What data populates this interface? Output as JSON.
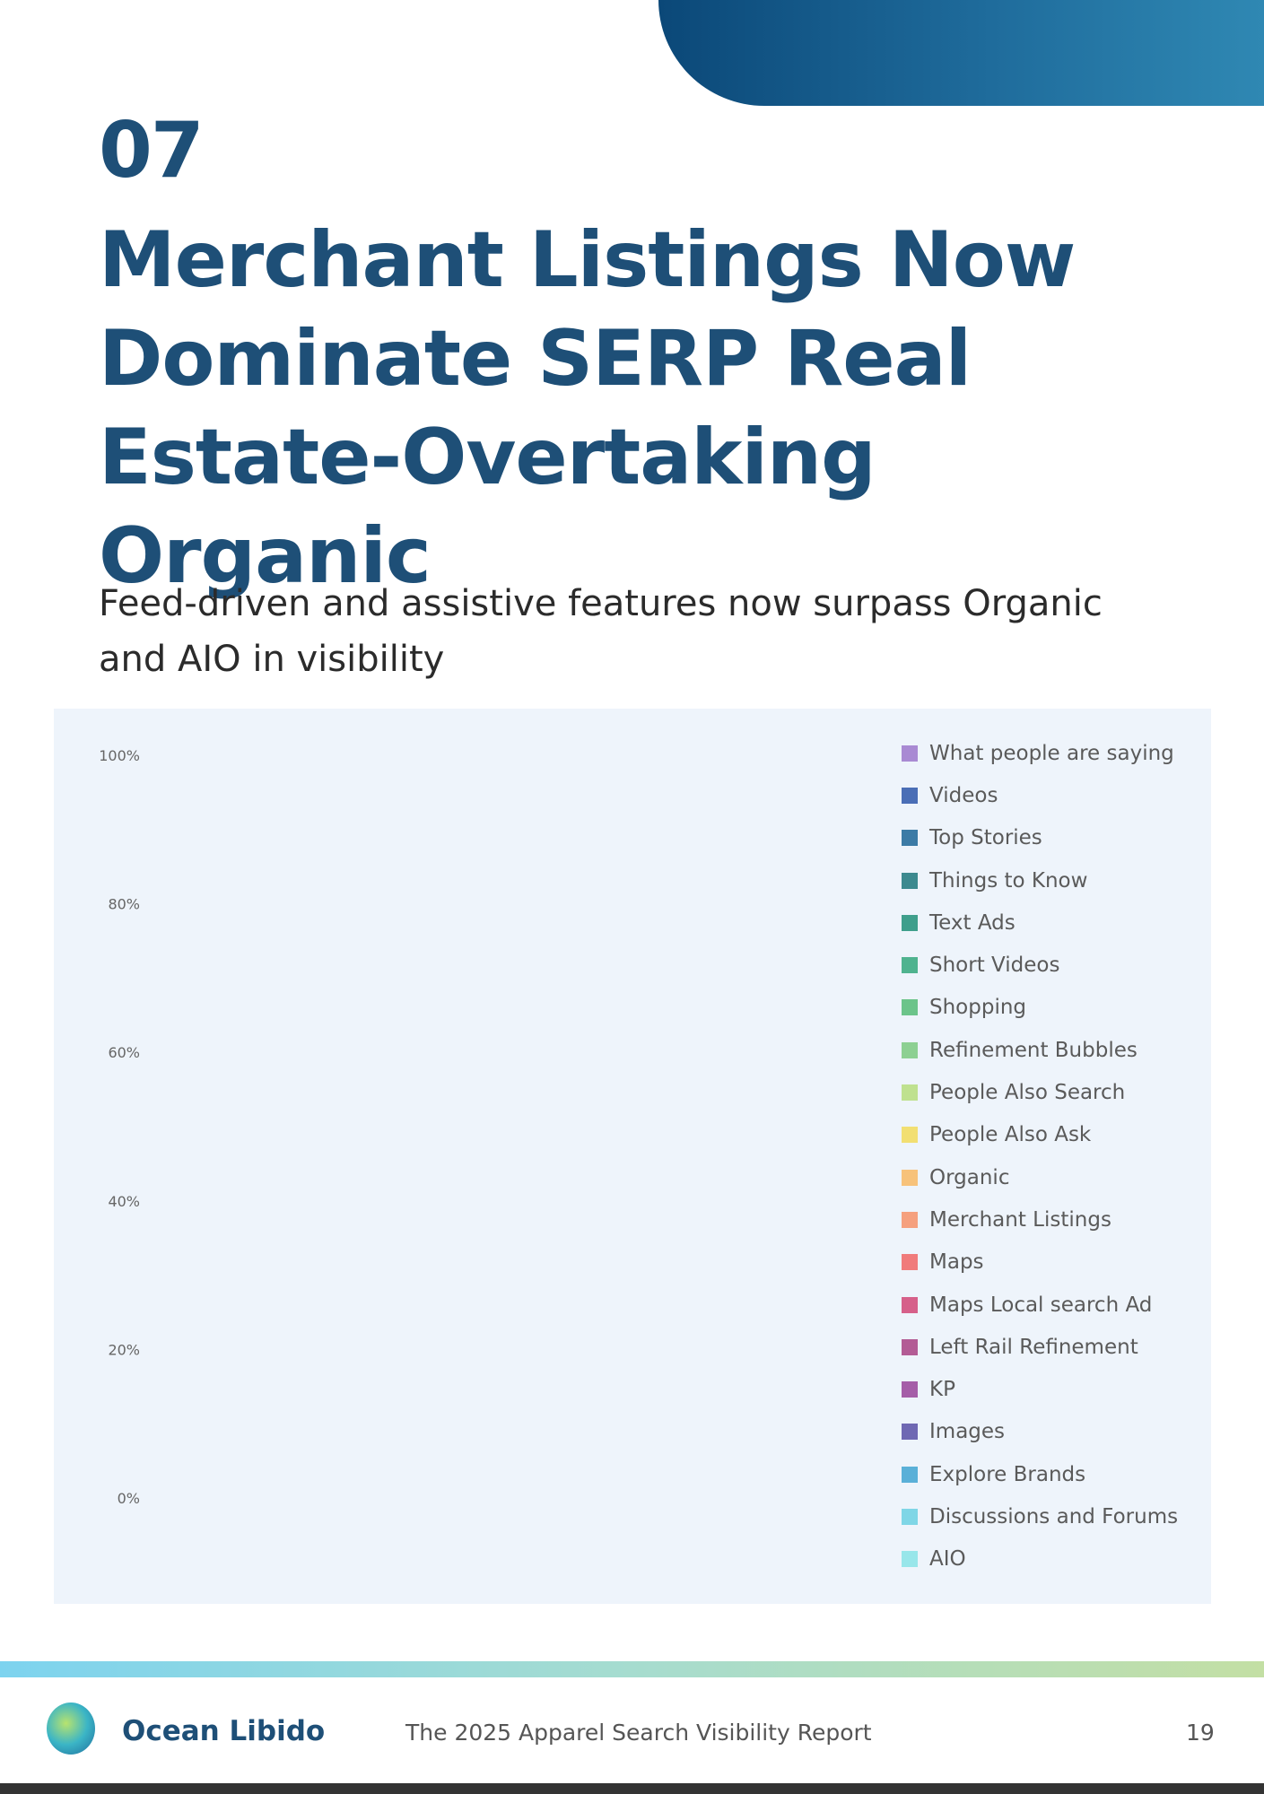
{
  "page": {
    "section_number": "07",
    "title": "Merchant Listings Now Dominate SERP Real Estate-Overtaking Organic",
    "subtitle": "Feed-driven and assistive features now surpass Organic and AIO in visibility"
  },
  "footer": {
    "brand": "Ocean Libido",
    "report_title": "The 2025 Apparel Search Visibility Report",
    "page_number": "19"
  },
  "colors": {
    "title": "#1e4f77",
    "banner": "#0b4878",
    "panel_bg": "#eef4fb"
  },
  "chart_data": {
    "type": "area",
    "stacked": true,
    "normalized": true,
    "y_tick_labels": [
      "0%",
      "20%",
      "40%",
      "60%",
      "80%",
      "100%"
    ],
    "x_tick_labels": [],
    "ylim": [
      0,
      100
    ],
    "legend_position": "right",
    "grid": false,
    "series": [
      {
        "name": "AIO",
        "color": "#98e6ea",
        "values": [
          0,
          0,
          0,
          0,
          0,
          0,
          0,
          0,
          0,
          0,
          0,
          0,
          0,
          0,
          0,
          0,
          0,
          0,
          0,
          0,
          0,
          0,
          0,
          0,
          0,
          0,
          0,
          0,
          0,
          0,
          0,
          0,
          0,
          0,
          0,
          0,
          0,
          0,
          0,
          0,
          0,
          0,
          0,
          0,
          0,
          0
        ]
      },
      {
        "name": "Discussions and Forums",
        "color": "#7fd6e6",
        "values": [
          0,
          0,
          0,
          0,
          0,
          0,
          0,
          0,
          0,
          0,
          0,
          0,
          0,
          0,
          0,
          0,
          0,
          0,
          0,
          0,
          0,
          0,
          0,
          0,
          0,
          0,
          0,
          0,
          0,
          0,
          0,
          0,
          0,
          0,
          0,
          0,
          0,
          0,
          0,
          0,
          0,
          0,
          0,
          0,
          0,
          0
        ]
      },
      {
        "name": "Explore Brands",
        "color": "#5ab0d8",
        "values": [
          0,
          0,
          0,
          0,
          0,
          0,
          0,
          0,
          0,
          0,
          0,
          0,
          0,
          0,
          0,
          0,
          0,
          0,
          0,
          0,
          0,
          0,
          0,
          0,
          0,
          0,
          0,
          0,
          0,
          0,
          0,
          0,
          0,
          0,
          0,
          0,
          0,
          0,
          0,
          0,
          0,
          0,
          0,
          0,
          0,
          0
        ]
      },
      {
        "name": "Images",
        "color": "#6f68b3",
        "values": [
          0,
          0,
          0,
          0,
          0,
          0,
          0,
          0,
          0,
          0,
          0,
          0,
          0,
          0,
          0,
          0,
          0,
          0,
          0,
          0,
          0,
          0,
          0,
          0,
          0,
          0,
          0,
          0,
          0,
          0,
          0,
          0,
          0,
          0,
          0,
          0,
          0,
          0,
          0,
          0,
          0,
          0,
          0,
          0,
          0,
          0
        ]
      },
      {
        "name": "KP",
        "color": "#a55ea8",
        "values": [
          0,
          0,
          0,
          0,
          0,
          0,
          0,
          0,
          0,
          0,
          0,
          0,
          0,
          0,
          0,
          0,
          0,
          0,
          0,
          0,
          0,
          0,
          0,
          0,
          0,
          0,
          0,
          0,
          0,
          0,
          0,
          0,
          0,
          0,
          0,
          0,
          0,
          0,
          0,
          0,
          0,
          0,
          0,
          0,
          0,
          0
        ]
      },
      {
        "name": "Left Rail Refinement",
        "color": "#b35c95",
        "values": [
          0,
          0,
          0,
          0,
          0,
          0,
          0,
          0,
          0,
          0,
          0,
          0,
          0,
          0,
          0,
          0,
          0,
          0,
          0,
          0,
          0,
          0,
          0,
          0,
          0,
          0,
          0,
          0,
          0,
          0,
          0,
          0,
          0,
          0,
          0,
          0,
          0,
          0,
          0,
          0,
          0,
          0,
          0,
          0,
          0,
          0
        ]
      },
      {
        "name": "Maps Local search Ad",
        "color": "#d6608a",
        "values": [
          0,
          0,
          0,
          0,
          0,
          0,
          0,
          0,
          0,
          0,
          0,
          0,
          0,
          0,
          0,
          0,
          0,
          0,
          0,
          0,
          0,
          0,
          0,
          0,
          0,
          0,
          0,
          0,
          0,
          0,
          0,
          0,
          0,
          0,
          0,
          0,
          0,
          0,
          0,
          0,
          0,
          0,
          0,
          0,
          0,
          0
        ]
      },
      {
        "name": "Maps",
        "color": "#f07b7b",
        "values": [
          0,
          0,
          0,
          0,
          0,
          0,
          0,
          0,
          0,
          0,
          0,
          0,
          0,
          0,
          0,
          0,
          0,
          0,
          0,
          0,
          0,
          0,
          0,
          0,
          0,
          0,
          0,
          0,
          0,
          0,
          0,
          0,
          0,
          0,
          0,
          0,
          0,
          0,
          0,
          0,
          0,
          0,
          0,
          0,
          0,
          0
        ]
      },
      {
        "name": "Merchant Listings",
        "color": "#f5a07e",
        "values": [
          0,
          0,
          0,
          0,
          0,
          0,
          0,
          0,
          0,
          0,
          0,
          0,
          0,
          0,
          0,
          0,
          0,
          0,
          0,
          0,
          0,
          0,
          0,
          0,
          0,
          0,
          0,
          0,
          0,
          0,
          0,
          0,
          0,
          0,
          0,
          0,
          0,
          0,
          0,
          0,
          0,
          0,
          0,
          0,
          0,
          0
        ]
      },
      {
        "name": "Organic",
        "color": "#f7c27a",
        "values": [
          0,
          0,
          0,
          0,
          0,
          0,
          0,
          0,
          0,
          0,
          0,
          0,
          0,
          0,
          0,
          0,
          0,
          0,
          0,
          0,
          0,
          0,
          0,
          0,
          0,
          0,
          0,
          0,
          0,
          0,
          0,
          0,
          0,
          0,
          0,
          0,
          0,
          0,
          0,
          0,
          0,
          0,
          0,
          0,
          0,
          0
        ]
      },
      {
        "name": "People Also Ask",
        "color": "#f2df72",
        "values": [
          0,
          0,
          0,
          0,
          0,
          0,
          0,
          0,
          0,
          0,
          0,
          0,
          0,
          0,
          0,
          0,
          0,
          0,
          0,
          0,
          0,
          0,
          0,
          0,
          0,
          0,
          0,
          0,
          0,
          0,
          0,
          0,
          0,
          0,
          0,
          0,
          0,
          0,
          0,
          0,
          0,
          0,
          0,
          0,
          0,
          0
        ]
      },
      {
        "name": "People Also Search",
        "color": "#bfe18f",
        "values": [
          0,
          0,
          0,
          0,
          0,
          0,
          0,
          0,
          0,
          0,
          0,
          0,
          0,
          0,
          0,
          0,
          0,
          0,
          0,
          0,
          0,
          0,
          0,
          0,
          0,
          0,
          0,
          0,
          0,
          0,
          0,
          0,
          0,
          0,
          0,
          0,
          0,
          0,
          0,
          0,
          0,
          0,
          0,
          0,
          0,
          0
        ]
      },
      {
        "name": "Refinement Bubbles",
        "color": "#8dd092",
        "values": [
          0,
          0,
          0,
          0,
          0,
          0,
          0,
          0,
          0,
          0,
          0,
          0,
          0,
          0,
          0,
          0,
          0,
          0,
          0,
          0,
          0,
          0,
          0,
          0,
          0,
          0,
          0,
          0,
          0,
          0,
          0,
          0,
          0,
          0,
          0,
          0,
          0,
          0,
          0,
          0,
          0,
          0,
          0,
          0,
          0,
          0
        ]
      },
      {
        "name": "Shopping",
        "color": "#6cc48a",
        "values": [
          0,
          0,
          0,
          0,
          0,
          0,
          0,
          0,
          0,
          0,
          0,
          0,
          0,
          0,
          0,
          0,
          0,
          0,
          0,
          0,
          0,
          0,
          0,
          0,
          0,
          0,
          0,
          0,
          0,
          0,
          0,
          0,
          0,
          0,
          0,
          0,
          0,
          0,
          0,
          0,
          0,
          0,
          0,
          0,
          0,
          0
        ]
      },
      {
        "name": "Short Videos",
        "color": "#4fb38f",
        "values": [
          0,
          0,
          0,
          0,
          0,
          0,
          0,
          0,
          0,
          0,
          0,
          0,
          0,
          0,
          0,
          0,
          0,
          0,
          0,
          0,
          0,
          0,
          0,
          0,
          0,
          0,
          0,
          0,
          0,
          0,
          0,
          0,
          0,
          0,
          0,
          0,
          0,
          0,
          0,
          0,
          0,
          0,
          0,
          0,
          0,
          0
        ]
      },
      {
        "name": "Text Ads",
        "color": "#3f9f8c",
        "values": [
          0,
          0,
          0,
          0,
          0,
          0,
          0,
          0,
          0,
          0,
          0,
          0,
          0,
          0,
          0,
          0,
          0,
          0,
          0,
          0,
          0,
          0,
          0,
          0,
          0,
          0,
          0,
          0,
          0,
          0,
          0,
          0,
          0,
          0,
          0,
          0,
          0,
          0,
          0,
          0,
          0,
          0,
          0,
          0,
          0,
          0
        ]
      },
      {
        "name": "Things to Know",
        "color": "#3d8a8f",
        "values": [
          0,
          0,
          0,
          0,
          0,
          0,
          0,
          0,
          0,
          0,
          0,
          0,
          0,
          0,
          0,
          0,
          0,
          0,
          0,
          0,
          0,
          0,
          0,
          0,
          0,
          0,
          0,
          0,
          0,
          0,
          0,
          0,
          0,
          0,
          0,
          0,
          0,
          0,
          0,
          0,
          0,
          0,
          0,
          0,
          0,
          0
        ]
      },
      {
        "name": "Top Stories",
        "color": "#3c7ba6",
        "values": [
          0,
          0,
          0,
          0,
          0,
          0,
          0,
          0,
          0,
          0,
          0,
          0,
          0,
          0,
          0,
          0,
          0,
          0,
          0,
          0,
          0,
          0,
          0,
          0,
          0,
          0,
          0,
          0,
          0,
          0,
          0,
          0,
          0,
          0,
          0,
          0,
          0,
          0,
          0,
          0,
          0,
          0,
          0,
          0,
          0,
          0
        ]
      },
      {
        "name": "Videos",
        "color": "#4a6eb6",
        "values": [
          0,
          0,
          0,
          0,
          0,
          0,
          0,
          0,
          0,
          0,
          0,
          0,
          0,
          0,
          0,
          0,
          0,
          0,
          0,
          0,
          0,
          0,
          0,
          0,
          0,
          0,
          0,
          0,
          0,
          0,
          0,
          0,
          0,
          0,
          0,
          0,
          0,
          0,
          0,
          0,
          0,
          0,
          0,
          0,
          0,
          0
        ]
      },
      {
        "name": "What people are saying",
        "color": "#a98ad3",
        "values": [
          0,
          0,
          0,
          0,
          0,
          0,
          0,
          0,
          0,
          0,
          0,
          0,
          0,
          0,
          0,
          0,
          0,
          0,
          0,
          0,
          0,
          0,
          0,
          0,
          0,
          0,
          0,
          0,
          0,
          0,
          0,
          0,
          0,
          0,
          0,
          0,
          0,
          0,
          0,
          0,
          0,
          0,
          0,
          0,
          0,
          0
        ]
      }
    ]
  }
}
